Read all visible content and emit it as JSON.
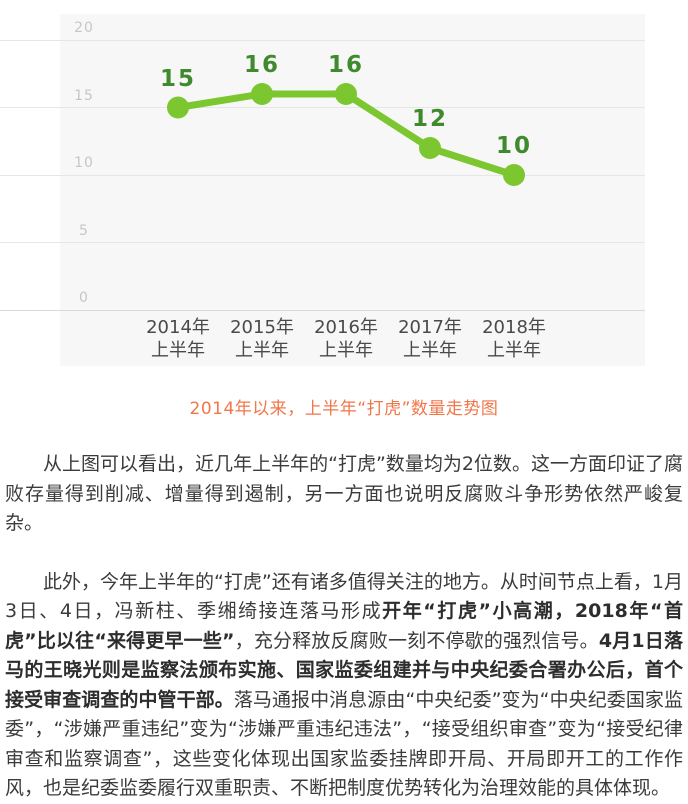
{
  "chart_data": {
    "type": "line",
    "caption": "2014年以来，上半年“打虎”数量走势图",
    "categories": [
      "2014年",
      "2015年",
      "2016年",
      "2017年",
      "2018年"
    ],
    "category_subline": "上半年",
    "values": [
      15,
      16,
      16,
      12,
      10
    ],
    "yticks": [
      20,
      15,
      10,
      5,
      0
    ],
    "ylim": [
      0,
      22
    ],
    "grid": true,
    "legend": "none",
    "colors": {
      "line": "#7cc62f",
      "marker": "#7cc62f",
      "value_label": "#3f8a2c",
      "ytick_label": "#c6c6c6",
      "xtick_label": "#4a4a4a",
      "plot_bg": "#f7f7f7",
      "gridline": "#e6e6e6",
      "zero_line": "#d8d8d8",
      "caption": "#f1764a"
    }
  },
  "article": {
    "paragraphs": [
      {
        "runs": [
          {
            "text": "从上图可以看出，近几年上半年的“打虎”数量均为2位数。这一方面印证了腐败存量得到削减、增量得到遏制，另一方面也说明反腐败斗争形势依然严峻复杂。",
            "bold": false
          }
        ]
      },
      {
        "runs": [
          {
            "text": "此外，今年上半年的“打虎”还有诸多值得关注的地方。从时间节点上看，1月3日、4日，冯新柱、季缃绮接连落马形成",
            "bold": false
          },
          {
            "text": "开年“打虎”小高潮，2018年“首虎”比以往“来得更早一些”",
            "bold": true
          },
          {
            "text": "，充分释放反腐败一刻不停歇的强烈信号。",
            "bold": false
          },
          {
            "text": "4月1日落马的王晓光则是监察法颁布实施、国家监委组建并与中央纪委合署办公后，首个接受审查调查的中管干部。",
            "bold": true
          },
          {
            "text": "落马通报中消息源由“中央纪委”变为“中央纪委国家监委”，“涉嫌严重违纪”变为“涉嫌严重违纪违法”，“接受组织审查”变为“接受纪律审查和监察调查”，这些变化体现出国家监委挂牌即开局、开局即开工的工作作风，也是纪委监委履行双重职责、不断把制度优势转化为治理效能的具体体现。",
            "bold": false
          }
        ]
      }
    ]
  }
}
